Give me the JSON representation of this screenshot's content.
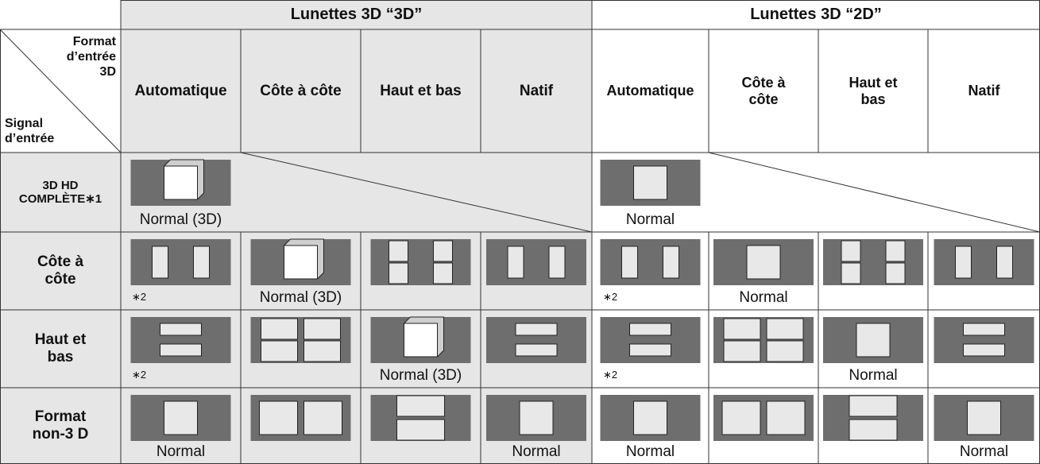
{
  "table": {
    "groups": [
      "Lunettes 3D “3D”",
      "Lunettes 3D “2D”"
    ],
    "corner": {
      "top": "Format d’entrée 3D",
      "bottom": "Signal d’entrée"
    },
    "columns": [
      "Automatique",
      "Côte à côte",
      "Haut et bas",
      "Natif",
      "Automatique",
      "Côte à côte",
      "Haut et bas",
      "Natif"
    ],
    "rows": [
      {
        "label": "3D HD COMPLÈTE∗1",
        "cells": [
          "Normal (3D)",
          null,
          null,
          null,
          "Normal",
          null,
          null,
          null
        ]
      },
      {
        "label": "Côte à côte",
        "cells": [
          "∗2",
          "Normal (3D)",
          null,
          null,
          "∗2",
          "Normal",
          null,
          null
        ]
      },
      {
        "label": "Haut et bas",
        "cells": [
          "∗2",
          null,
          "Normal (3D)",
          null,
          "∗2",
          null,
          "Normal",
          null
        ]
      },
      {
        "label": "Format non-3 D",
        "cells": [
          "Normal",
          null,
          null,
          "Normal",
          "Normal",
          null,
          null,
          "Normal"
        ]
      }
    ]
  }
}
